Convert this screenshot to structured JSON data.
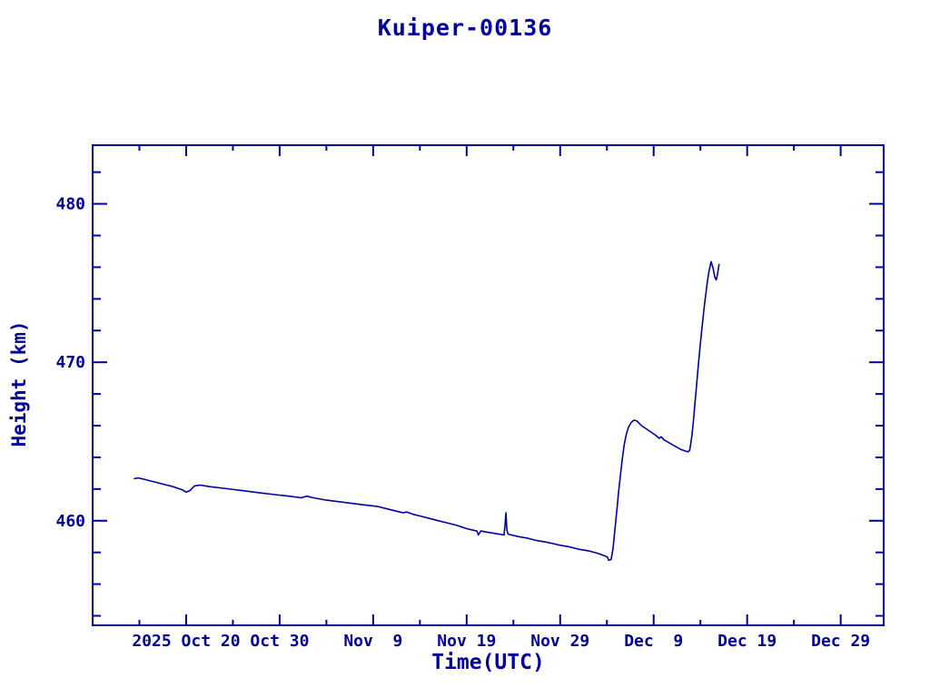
{
  "window": {
    "background": "#ffffff"
  },
  "chart_data": {
    "type": "line",
    "title": "Kuiper-00136",
    "xlabel": "Time(UTC)",
    "ylabel": "Height (km)",
    "text_color": "#000099",
    "line_color": "#000099",
    "grid": false,
    "legend": "none",
    "x_unit": "days since 2025 Oct 10 (UTC)",
    "xlim": [
      0,
      84.6
    ],
    "ylim": [
      453.4,
      483.7
    ],
    "x_major_ticks": [
      {
        "day": 10,
        "label": "2025 Oct 20"
      },
      {
        "day": 20,
        "label": "Oct 30"
      },
      {
        "day": 30,
        "label": "Nov  9"
      },
      {
        "day": 40,
        "label": "Nov 19"
      },
      {
        "day": 50,
        "label": "Nov 29"
      },
      {
        "day": 60,
        "label": "Dec  9"
      },
      {
        "day": 70,
        "label": "Dec 19"
      },
      {
        "day": 80,
        "label": "Dec 29"
      }
    ],
    "x_minor_tick_days": [
      5,
      15,
      25,
      35,
      45,
      55,
      65,
      75
    ],
    "y_major_ticks": [
      {
        "value": 460,
        "label": "460"
      },
      {
        "value": 470,
        "label": "470"
      },
      {
        "value": 480,
        "label": "480"
      }
    ],
    "y_minor_tick_values": [
      454,
      456,
      458,
      462,
      464,
      466,
      468,
      472,
      474,
      476,
      478,
      482
    ],
    "series": [
      {
        "name": "Kuiper-00136 height",
        "points": [
          [
            4.4,
            462.65
          ],
          [
            4.9,
            462.7
          ],
          [
            5.6,
            462.6
          ],
          [
            6.6,
            462.45
          ],
          [
            7.6,
            462.3
          ],
          [
            8.6,
            462.15
          ],
          [
            9.6,
            461.95
          ],
          [
            10.0,
            461.8
          ],
          [
            10.4,
            461.9
          ],
          [
            10.9,
            462.2
          ],
          [
            11.5,
            462.25
          ],
          [
            12.5,
            462.15
          ],
          [
            14.0,
            462.05
          ],
          [
            16.0,
            461.9
          ],
          [
            18.0,
            461.75
          ],
          [
            19.5,
            461.65
          ],
          [
            21.0,
            461.55
          ],
          [
            22.3,
            461.45
          ],
          [
            22.9,
            461.55
          ],
          [
            23.6,
            461.45
          ],
          [
            25.0,
            461.3
          ],
          [
            27.0,
            461.15
          ],
          [
            29.0,
            461.0
          ],
          [
            30.5,
            460.9
          ],
          [
            31.5,
            460.75
          ],
          [
            32.5,
            460.6
          ],
          [
            33.2,
            460.5
          ],
          [
            33.6,
            460.55
          ],
          [
            34.3,
            460.4
          ],
          [
            35.0,
            460.3
          ],
          [
            36.0,
            460.15
          ],
          [
            37.0,
            460.0
          ],
          [
            38.0,
            459.85
          ],
          [
            39.0,
            459.7
          ],
          [
            40.0,
            459.5
          ],
          [
            40.7,
            459.4
          ],
          [
            41.1,
            459.35
          ],
          [
            41.25,
            459.1
          ],
          [
            41.5,
            459.35
          ],
          [
            42.5,
            459.25
          ],
          [
            43.5,
            459.15
          ],
          [
            44.0,
            459.1
          ],
          [
            44.12,
            459.8
          ],
          [
            44.2,
            460.5
          ],
          [
            44.3,
            459.4
          ],
          [
            44.45,
            459.15
          ],
          [
            45.5,
            459.0
          ],
          [
            46.5,
            458.9
          ],
          [
            47.5,
            458.75
          ],
          [
            48.5,
            458.65
          ],
          [
            49.3,
            458.55
          ],
          [
            50.0,
            458.45
          ],
          [
            51.0,
            458.35
          ],
          [
            52.0,
            458.2
          ],
          [
            53.0,
            458.1
          ],
          [
            54.0,
            457.95
          ],
          [
            54.7,
            457.8
          ],
          [
            55.05,
            457.7
          ],
          [
            55.2,
            457.5
          ],
          [
            55.45,
            457.55
          ],
          [
            55.65,
            458.2
          ],
          [
            55.85,
            459.4
          ],
          [
            56.05,
            460.6
          ],
          [
            56.25,
            461.8
          ],
          [
            56.45,
            462.9
          ],
          [
            56.65,
            463.9
          ],
          [
            56.85,
            464.8
          ],
          [
            57.05,
            465.4
          ],
          [
            57.3,
            465.9
          ],
          [
            57.6,
            466.2
          ],
          [
            57.9,
            466.35
          ],
          [
            58.2,
            466.3
          ],
          [
            58.7,
            466.0
          ],
          [
            59.2,
            465.8
          ],
          [
            59.7,
            465.6
          ],
          [
            60.2,
            465.4
          ],
          [
            60.6,
            465.2
          ],
          [
            60.8,
            465.3
          ],
          [
            61.1,
            465.1
          ],
          [
            61.7,
            464.9
          ],
          [
            62.3,
            464.7
          ],
          [
            62.9,
            464.5
          ],
          [
            63.4,
            464.4
          ],
          [
            63.7,
            464.35
          ],
          [
            63.85,
            464.45
          ],
          [
            63.98,
            464.9
          ],
          [
            64.1,
            465.4
          ],
          [
            64.25,
            466.3
          ],
          [
            64.4,
            467.3
          ],
          [
            64.55,
            468.3
          ],
          [
            64.7,
            469.3
          ],
          [
            64.85,
            470.3
          ],
          [
            65.0,
            471.2
          ],
          [
            65.15,
            472.1
          ],
          [
            65.3,
            472.9
          ],
          [
            65.45,
            473.7
          ],
          [
            65.6,
            474.4
          ],
          [
            65.75,
            475.1
          ],
          [
            65.9,
            475.7
          ],
          [
            66.05,
            476.1
          ],
          [
            66.15,
            476.35
          ],
          [
            66.35,
            475.95
          ],
          [
            66.55,
            475.35
          ],
          [
            66.7,
            475.2
          ],
          [
            66.85,
            475.65
          ],
          [
            67.0,
            476.2
          ]
        ]
      }
    ]
  }
}
